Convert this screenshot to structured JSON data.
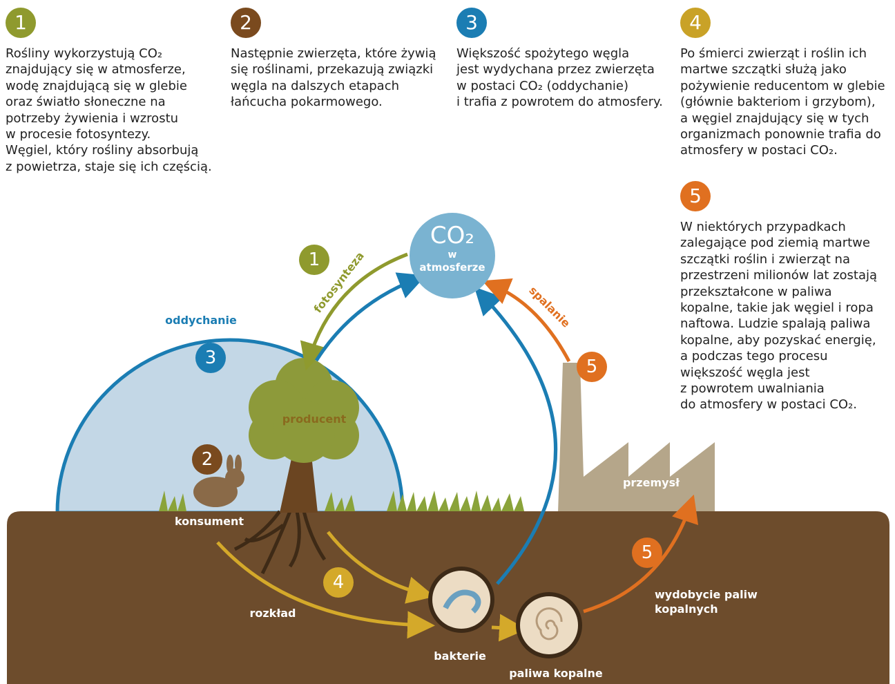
{
  "steps": [
    {
      "number": "1",
      "lines": [
        "Rośliny wykorzystują CO₂",
        "znajdujący się w atmosferze,",
        "wodę znajdującą się w glebie",
        "oraz światło słoneczne na",
        "potrzeby żywienia i wzrostu",
        "w procesie fotosyntezy.",
        "Węgiel, który rośliny absorbują",
        "z powietrza, staje się ich częścią."
      ]
    },
    {
      "number": "2",
      "lines": [
        "Następnie zwierzęta, które żywią",
        "się roślinami, przekazują związki",
        "węgla na dalszych etapach",
        "łańcucha pokarmowego."
      ]
    },
    {
      "number": "3",
      "lines": [
        "Większość spożytego węgla",
        "jest wydychana przez zwierzęta",
        "w postaci CO₂ (oddychanie)",
        "i trafia z powrotem do atmosfery."
      ]
    },
    {
      "number": "4",
      "lines": [
        "Po śmierci zwierząt i roślin ich",
        "martwe szczątki służą jako",
        "pożywienie reducentom w glebie",
        "(głównie bakteriom i grzybom),",
        "a węgiel znajdujący się w tych",
        "organizmach ponownie trafia do",
        "atmosfery w postaci CO₂."
      ]
    },
    {
      "number": "5",
      "lines": [
        "W niektórych przypadkach",
        "zalegające pod ziemią martwe",
        "szczątki roślin i zwierząt na",
        "przestrzeni milionów lat zostają",
        "przekształcone w paliwa",
        "kopalne, takie jak węgiel i ropa",
        "naftowa. Ludzie spalają paliwa",
        "kopalne, aby pozyskać energię,",
        "a podczas tego procesu",
        "większość węgla jest",
        "z powrotem uwalniania",
        "do atmosfery w postaci CO₂."
      ]
    }
  ],
  "diagram": {
    "co2": {
      "formula": "CO₂",
      "line1": "w",
      "line2": "atmosferze"
    },
    "labels": {
      "photosynthesis": "fotosynteza",
      "respiration": "oddychanie",
      "combustion": "spalanie",
      "producer": "producent",
      "consumer": "konsument",
      "decomposition": "rozkład",
      "bacteria": "bakterie",
      "fossil_fuels": "paliwa kopalne",
      "extraction": [
        "wydobycie paliw",
        "kopalnych"
      ],
      "industry": "przemysł"
    },
    "badges": [
      "1",
      "3",
      "2",
      "4",
      "5",
      "5",
      "5"
    ]
  }
}
